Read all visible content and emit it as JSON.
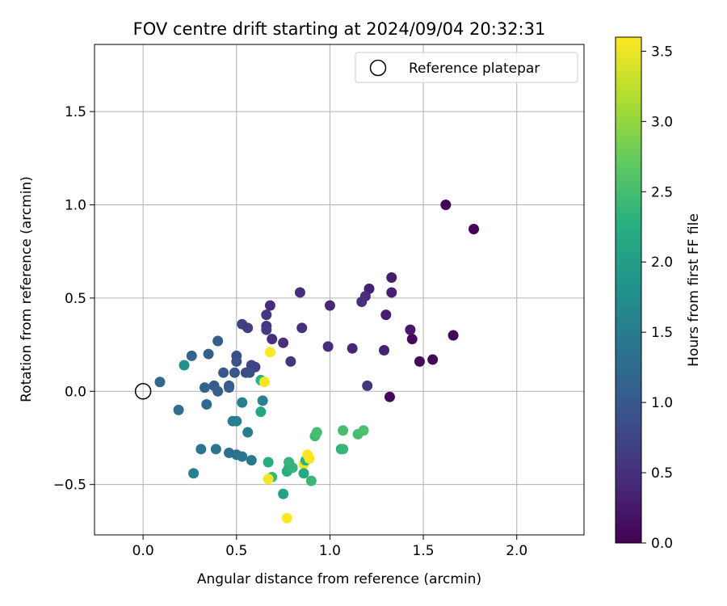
{
  "chart_data": {
    "type": "scatter",
    "title": "FOV centre drift starting at 2024/09/04 20:32:31",
    "xlabel": "Angular distance from reference (arcmin)",
    "ylabel": "Rotation from reference (arcmin)",
    "xlim": [
      -0.26,
      2.36
    ],
    "ylim": [
      -0.77,
      1.86
    ],
    "x_ticks": [
      0.0,
      0.5,
      1.0,
      1.5,
      2.0
    ],
    "x_tick_labels": [
      "0.0",
      "0.5",
      "1.0",
      "1.5",
      "2.0"
    ],
    "y_ticks": [
      -0.5,
      0.0,
      0.5,
      1.0,
      1.5
    ],
    "y_tick_labels": [
      "−0.5",
      "0.0",
      "0.5",
      "1.0",
      "1.5"
    ],
    "grid": true,
    "legend": {
      "placement": "top-right",
      "entries": [
        {
          "label": "Reference platepar",
          "marker": "open-circle"
        }
      ]
    },
    "reference_point": {
      "x": 0.0,
      "y": 0.0
    },
    "colormap": "viridis",
    "colorbar": {
      "label": "Hours from first FF file",
      "range": [
        0.0,
        3.6
      ],
      "ticks": [
        0.0,
        0.5,
        1.0,
        1.5,
        2.0,
        2.5,
        3.0,
        3.5
      ],
      "tick_labels": [
        "0.0",
        "0.5",
        "1.0",
        "1.5",
        "2.0",
        "2.5",
        "3.0",
        "3.5"
      ]
    },
    "series": [
      {
        "points": [
          {
            "x": 1.62,
            "y": 1.0,
            "c": 0.02
          },
          {
            "x": 1.77,
            "y": 0.87,
            "c": 0.02
          },
          {
            "x": 1.66,
            "y": 0.3,
            "c": 0.03
          },
          {
            "x": 1.55,
            "y": 0.17,
            "c": 0.05
          },
          {
            "x": 1.48,
            "y": 0.16,
            "c": 0.08
          },
          {
            "x": 1.44,
            "y": 0.28,
            "c": 0.06
          },
          {
            "x": 1.43,
            "y": 0.33,
            "c": 0.25
          },
          {
            "x": 1.32,
            "y": -0.03,
            "c": 0.08
          },
          {
            "x": 1.33,
            "y": 0.61,
            "c": 0.3
          },
          {
            "x": 1.33,
            "y": 0.53,
            "c": 0.33
          },
          {
            "x": 1.21,
            "y": 0.55,
            "c": 0.35
          },
          {
            "x": 1.19,
            "y": 0.51,
            "c": 0.45
          },
          {
            "x": 1.17,
            "y": 0.48,
            "c": 0.5
          },
          {
            "x": 1.3,
            "y": 0.41,
            "c": 0.3
          },
          {
            "x": 1.29,
            "y": 0.22,
            "c": 0.35
          },
          {
            "x": 1.2,
            "y": 0.03,
            "c": 0.55
          },
          {
            "x": 1.12,
            "y": 0.23,
            "c": 0.4
          },
          {
            "x": 1.0,
            "y": 0.46,
            "c": 0.4
          },
          {
            "x": 0.99,
            "y": 0.24,
            "c": 0.45
          },
          {
            "x": 0.84,
            "y": 0.53,
            "c": 0.45
          },
          {
            "x": 0.85,
            "y": 0.34,
            "c": 0.5
          },
          {
            "x": 0.79,
            "y": 0.16,
            "c": 0.55
          },
          {
            "x": 0.75,
            "y": 0.26,
            "c": 0.48
          },
          {
            "x": 0.68,
            "y": 0.46,
            "c": 0.45
          },
          {
            "x": 0.66,
            "y": 0.41,
            "c": 0.6
          },
          {
            "x": 0.66,
            "y": 0.35,
            "c": 0.55
          },
          {
            "x": 0.66,
            "y": 0.33,
            "c": 0.65
          },
          {
            "x": 0.69,
            "y": 0.28,
            "c": 0.45
          },
          {
            "x": 0.53,
            "y": 0.36,
            "c": 0.7
          },
          {
            "x": 0.56,
            "y": 0.34,
            "c": 0.65
          },
          {
            "x": 0.58,
            "y": 0.14,
            "c": 0.75
          },
          {
            "x": 0.6,
            "y": 0.13,
            "c": 0.7
          },
          {
            "x": 0.55,
            "y": 0.1,
            "c": 0.8
          },
          {
            "x": 0.57,
            "y": 0.1,
            "c": 0.85
          },
          {
            "x": 0.5,
            "y": 0.19,
            "c": 0.85
          },
          {
            "x": 0.5,
            "y": 0.16,
            "c": 0.9
          },
          {
            "x": 0.49,
            "y": 0.1,
            "c": 0.95
          },
          {
            "x": 0.46,
            "y": 0.03,
            "c": 1.0
          },
          {
            "x": 0.46,
            "y": 0.02,
            "c": 1.05
          },
          {
            "x": 0.43,
            "y": 0.1,
            "c": 1.0
          },
          {
            "x": 0.4,
            "y": 0.27,
            "c": 1.05
          },
          {
            "x": 0.35,
            "y": 0.2,
            "c": 1.1
          },
          {
            "x": 0.26,
            "y": 0.19,
            "c": 1.15
          },
          {
            "x": 0.38,
            "y": 0.03,
            "c": 1.05
          },
          {
            "x": 0.4,
            "y": 0.0,
            "c": 1.1
          },
          {
            "x": 0.33,
            "y": 0.02,
            "c": 1.15
          },
          {
            "x": 0.34,
            "y": -0.07,
            "c": 1.25
          },
          {
            "x": 0.09,
            "y": 0.05,
            "c": 1.2
          },
          {
            "x": 0.19,
            "y": -0.1,
            "c": 1.3
          },
          {
            "x": 0.22,
            "y": 0.14,
            "c": 1.8
          },
          {
            "x": 0.53,
            "y": -0.06,
            "c": 1.55
          },
          {
            "x": 0.56,
            "y": -0.22,
            "c": 1.5
          },
          {
            "x": 0.48,
            "y": -0.16,
            "c": 1.45
          },
          {
            "x": 0.5,
            "y": -0.16,
            "c": 1.55
          },
          {
            "x": 0.46,
            "y": -0.33,
            "c": 1.3
          },
          {
            "x": 0.5,
            "y": -0.34,
            "c": 1.35
          },
          {
            "x": 0.53,
            "y": -0.35,
            "c": 1.4
          },
          {
            "x": 0.58,
            "y": -0.37,
            "c": 1.45
          },
          {
            "x": 0.39,
            "y": -0.31,
            "c": 1.4
          },
          {
            "x": 0.31,
            "y": -0.31,
            "c": 1.4
          },
          {
            "x": 0.27,
            "y": -0.44,
            "c": 1.55
          },
          {
            "x": 0.63,
            "y": 0.06,
            "c": 2.3
          },
          {
            "x": 0.65,
            "y": 0.05,
            "c": 3.55
          },
          {
            "x": 0.68,
            "y": 0.21,
            "c": 3.6
          },
          {
            "x": 0.63,
            "y": -0.11,
            "c": 2.1
          },
          {
            "x": 0.64,
            "y": -0.05,
            "c": 1.55
          },
          {
            "x": 0.67,
            "y": -0.38,
            "c": 2.2
          },
          {
            "x": 0.69,
            "y": -0.46,
            "c": 2.4
          },
          {
            "x": 0.67,
            "y": -0.47,
            "c": 3.55
          },
          {
            "x": 0.75,
            "y": -0.55,
            "c": 2.05
          },
          {
            "x": 0.77,
            "y": -0.68,
            "c": 3.6
          },
          {
            "x": 0.77,
            "y": -0.43,
            "c": 2.25
          },
          {
            "x": 0.78,
            "y": -0.41,
            "c": 2.3
          },
          {
            "x": 0.78,
            "y": -0.38,
            "c": 2.35
          },
          {
            "x": 0.8,
            "y": -0.41,
            "c": 2.35
          },
          {
            "x": 0.86,
            "y": -0.39,
            "c": 3.5
          },
          {
            "x": 0.86,
            "y": -0.44,
            "c": 2.15
          },
          {
            "x": 0.87,
            "y": -0.37,
            "c": 2.3
          },
          {
            "x": 0.89,
            "y": -0.36,
            "c": 3.55
          },
          {
            "x": 0.88,
            "y": -0.34,
            "c": 3.6
          },
          {
            "x": 0.9,
            "y": -0.48,
            "c": 2.4
          },
          {
            "x": 0.92,
            "y": -0.24,
            "c": 2.45
          },
          {
            "x": 0.93,
            "y": -0.22,
            "c": 2.5
          },
          {
            "x": 1.06,
            "y": -0.31,
            "c": 2.2
          },
          {
            "x": 1.07,
            "y": -0.31,
            "c": 2.4
          },
          {
            "x": 1.07,
            "y": -0.21,
            "c": 2.5
          },
          {
            "x": 1.15,
            "y": -0.23,
            "c": 2.5
          },
          {
            "x": 1.18,
            "y": -0.21,
            "c": 2.55
          }
        ]
      }
    ]
  }
}
